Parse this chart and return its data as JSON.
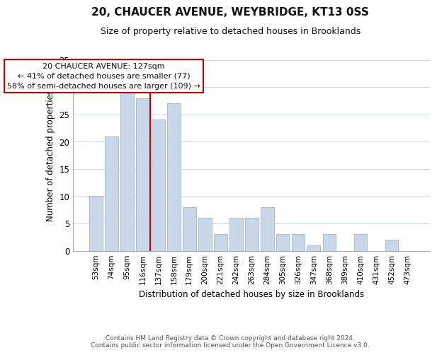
{
  "title": "20, CHAUCER AVENUE, WEYBRIDGE, KT13 0SS",
  "subtitle": "Size of property relative to detached houses in Brooklands",
  "xlabel": "Distribution of detached houses by size in Brooklands",
  "ylabel": "Number of detached properties",
  "footer_line1": "Contains HM Land Registry data © Crown copyright and database right 2024.",
  "footer_line2": "Contains public sector information licensed under the Open Government Licence v3.0.",
  "categories": [
    "53sqm",
    "74sqm",
    "95sqm",
    "116sqm",
    "137sqm",
    "158sqm",
    "179sqm",
    "200sqm",
    "221sqm",
    "242sqm",
    "263sqm",
    "284sqm",
    "305sqm",
    "326sqm",
    "347sqm",
    "368sqm",
    "389sqm",
    "410sqm",
    "431sqm",
    "452sqm",
    "473sqm"
  ],
  "values": [
    10,
    21,
    29,
    28,
    24,
    27,
    8,
    6,
    3,
    6,
    6,
    8,
    3,
    3,
    1,
    3,
    0,
    3,
    0,
    2,
    0
  ],
  "bar_color": "#c8d8e8",
  "bar_edge_color": "#a0b8cc",
  "vline_x": 3.5,
  "vline_color": "#cc0000",
  "annotation_line1": "20 CHAUCER AVENUE: 127sqm",
  "annotation_line2": "← 41% of detached houses are smaller (77)",
  "annotation_line3": "58% of semi-detached houses are larger (109) →",
  "ylim": [
    0,
    35
  ],
  "yticks": [
    0,
    5,
    10,
    15,
    20,
    25,
    30,
    35
  ],
  "background_color": "#ffffff",
  "grid_color": "#d0d8e0"
}
